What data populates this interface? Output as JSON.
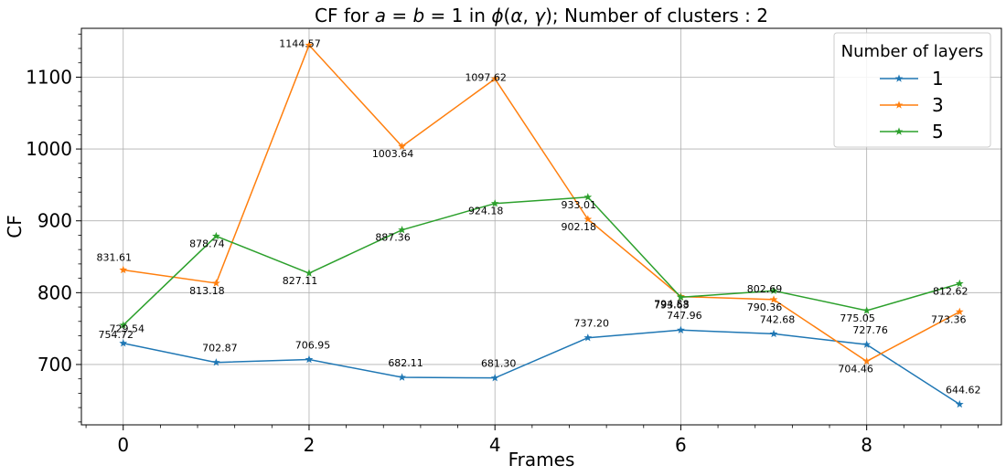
{
  "chart_data": {
    "type": "line",
    "title": "CF for a = b = 1 in ϕ(α, γ); Number of clusters : 2",
    "title_parts": [
      "CF for ",
      "a",
      " = ",
      "b",
      " = 1 in ",
      "ϕ",
      "(",
      "α",
      ", ",
      "γ",
      "); Number of clusters : 2"
    ],
    "xlabel": "Frames",
    "ylabel": "CF",
    "x": [
      0,
      1,
      2,
      3,
      4,
      5,
      6,
      7,
      8,
      9
    ],
    "xlim": [
      -0.45,
      9.45
    ],
    "ylim": [
      616,
      1168
    ],
    "xticks": [
      0,
      2,
      4,
      6,
      8
    ],
    "xtick_labels": [
      "0",
      "2",
      "4",
      "6",
      "8"
    ],
    "yticks": [
      700,
      800,
      900,
      1000,
      1100
    ],
    "ytick_labels": [
      "700",
      "800",
      "900",
      "1000",
      "1100"
    ],
    "grid": true,
    "legend": {
      "title": "Number of layers",
      "position": "top-right"
    },
    "series": [
      {
        "name": "1",
        "color": "#1f77b4",
        "values": [
          729.54,
          702.87,
          706.95,
          682.11,
          681.3,
          737.2,
          747.96,
          742.68,
          727.76,
          644.62
        ],
        "labels": [
          "729.54",
          "702.87",
          "706.95",
          "682.11",
          "681.30",
          "737.20",
          "747.96",
          "742.68",
          "727.76",
          "644.62"
        ]
      },
      {
        "name": "3",
        "color": "#ff7f0e",
        "values": [
          831.61,
          813.18,
          1144.57,
          1003.64,
          1097.62,
          902.18,
          794.58,
          790.36,
          704.46,
          773.36
        ],
        "labels": [
          "831.61",
          "813.18",
          "1144.57",
          "1003.64",
          "1097.62",
          "902.18",
          "794.58",
          "790.36",
          "704.46",
          "773.36"
        ]
      },
      {
        "name": "5",
        "color": "#2ca02c",
        "values": [
          754.72,
          878.74,
          827.11,
          887.36,
          924.18,
          933.01,
          793.63,
          802.69,
          775.05,
          812.62
        ],
        "labels": [
          "754.72",
          "878.74",
          "827.11",
          "887.36",
          "924.18",
          "933.01",
          "793.63",
          "802.69",
          "775.05",
          "812.62"
        ]
      }
    ]
  }
}
